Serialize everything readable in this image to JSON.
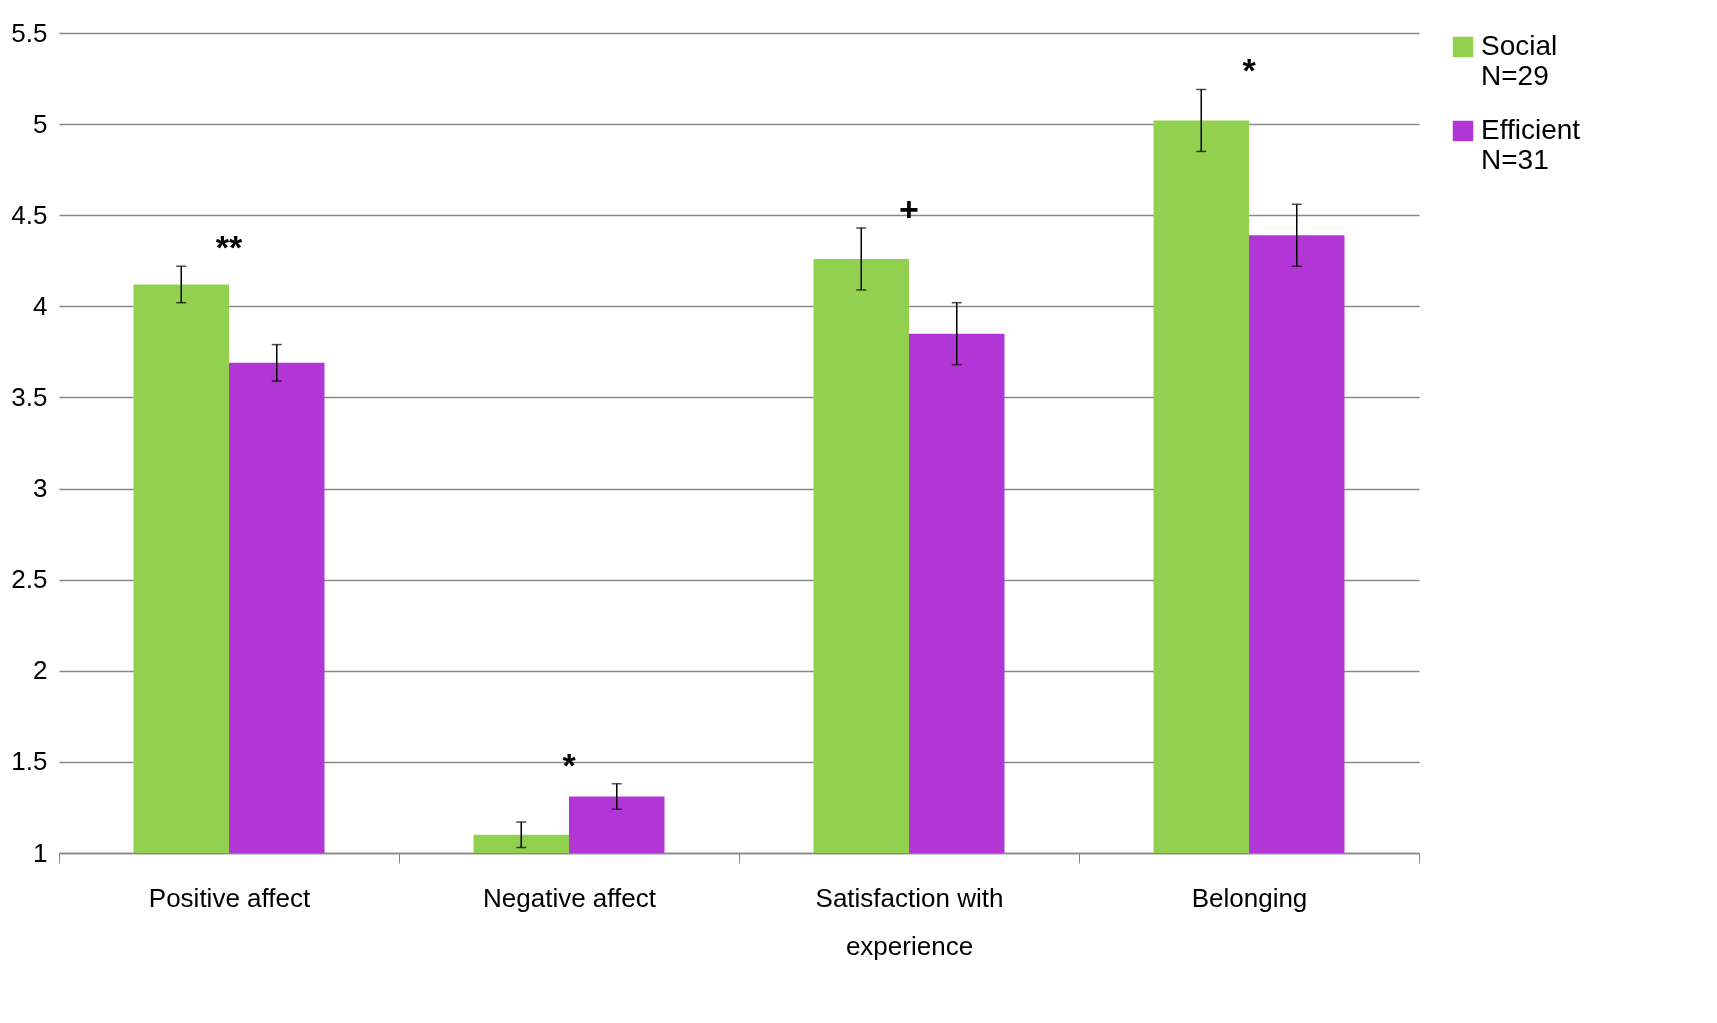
{
  "chart_data": {
    "type": "bar",
    "categories": [
      "Positive affect",
      "Negative affect",
      "Satisfaction with experience",
      "Belonging"
    ],
    "series": [
      {
        "name": "Social N=29",
        "color": "#92d050",
        "values": [
          4.12,
          1.1,
          4.26,
          5.02
        ],
        "errors": [
          0.1,
          0.07,
          0.17,
          0.17
        ]
      },
      {
        "name": "Efficient N=31",
        "color": "#b236d6",
        "values": [
          3.69,
          1.31,
          3.85,
          4.39
        ],
        "errors": [
          0.1,
          0.07,
          0.17,
          0.17
        ]
      }
    ],
    "ylim": [
      1,
      5.5
    ],
    "yticks": [
      1,
      1.5,
      2,
      2.5,
      3,
      3.5,
      4,
      4.5,
      5,
      5.5
    ],
    "grid": "y",
    "legend": "right",
    "annotations": [
      "**",
      "*",
      "+",
      "*"
    ]
  }
}
